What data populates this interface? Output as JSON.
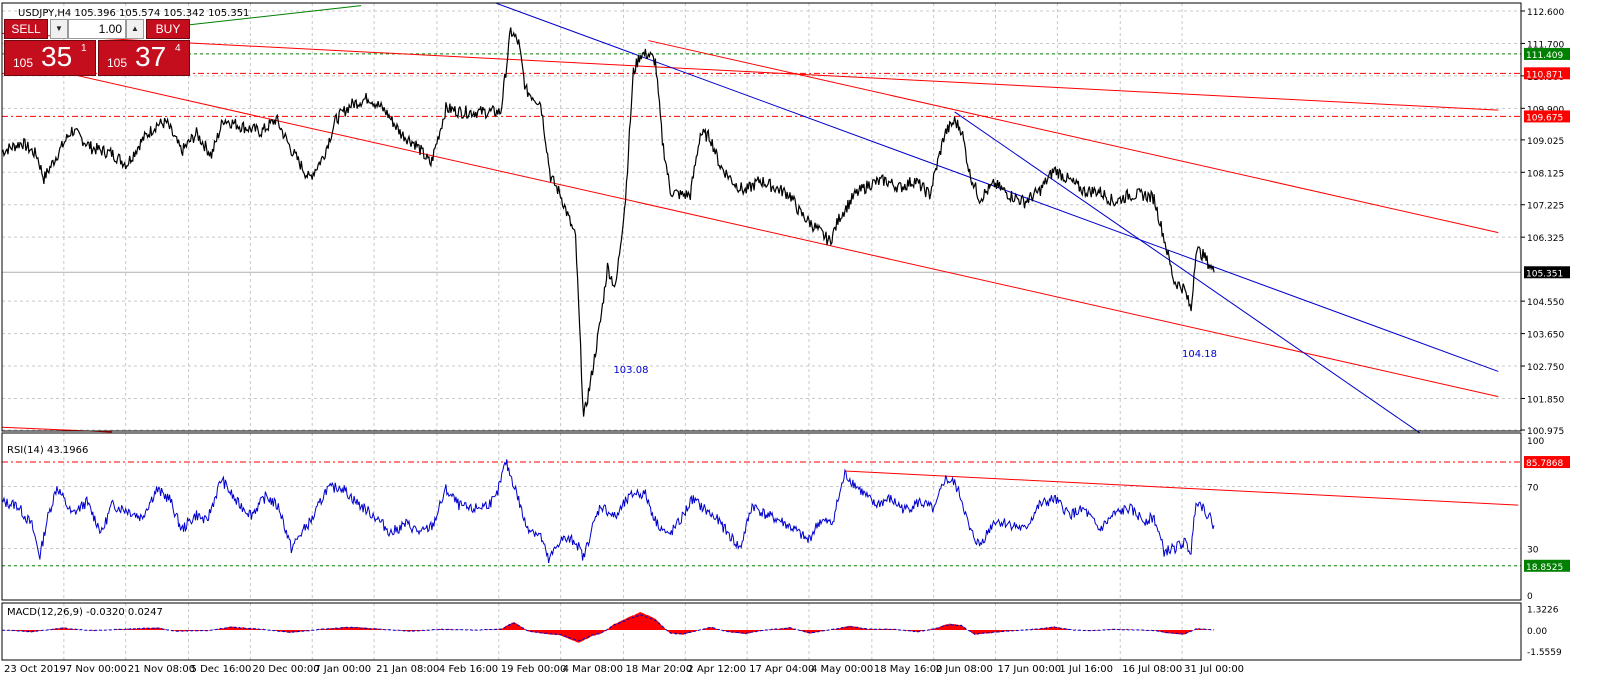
{
  "chart_title": "USDJPY,H4  105.396 105.574 105.342 105.351",
  "rsi_title": "RSI(14) 43.1966",
  "macd_title": "MACD(12,26,9) -0.0320 0.0247",
  "trade_panel": {
    "sell_label": "SELL",
    "buy_label": "BUY",
    "lot": "1.00",
    "sell_price": {
      "small": "105",
      "big": "35",
      "sup": "1"
    },
    "buy_price": {
      "small": "105",
      "big": "37",
      "sup": "4"
    }
  },
  "colors": {
    "bg": "#ffffff",
    "price": "#000000",
    "rsi": "#0000cd",
    "trend_red": "#ff0000",
    "channel_blue": "#0000cd",
    "green_level": "#008000",
    "red_level": "#ff0000",
    "macd_hist": "#ff0000",
    "grid": "#c8c8c8"
  },
  "chart_data": [
    {
      "type": "line",
      "name": "main",
      "symbol": "USDJPY",
      "timeframe": "H4",
      "ohlc_last": {
        "open": 105.396,
        "high": 105.574,
        "low": 105.342,
        "close": 105.351
      },
      "ylim": [
        100.9,
        112.65
      ],
      "y_ticks": [
        "112.600",
        "111.700",
        "110.800",
        "109.900",
        "109.025",
        "108.125",
        "107.225",
        "106.325",
        "104.550",
        "103.650",
        "102.750",
        "101.850",
        "100.975"
      ],
      "x_ticks": [
        "23 Oct 2019",
        "7 Nov 00:00",
        "21 Nov 08:00",
        "5 Dec 16:00",
        "20 Dec 00:00",
        "7 Jan 00:00",
        "21 Jan 08:00",
        "4 Feb 16:00",
        "19 Feb 00:00",
        "4 Mar 08:00",
        "18 Mar 20:00",
        "2 Apr 12:00",
        "17 Apr 04:00",
        "4 May 00:00",
        "18 May 16:00",
        "2 Jun 08:00",
        "17 Jun 00:00",
        "1 Jul 16:00",
        "16 Jul 08:00",
        "31 Jul 00:00"
      ],
      "x_tick_bars": [
        0,
        62,
        124,
        187,
        249,
        311,
        373,
        436,
        498,
        560,
        623,
        685,
        747,
        809,
        872,
        934,
        996,
        1058,
        1121,
        1183
      ],
      "levels": [
        {
          "value": 111.409,
          "label": "111.409",
          "style": "green"
        },
        {
          "value": 110.871,
          "label": "110.871",
          "style": "red"
        },
        {
          "value": 109.675,
          "label": "109.675",
          "style": "red"
        },
        {
          "value": 105.351,
          "label": "105.351",
          "style": "current"
        }
      ],
      "annotations": [
        {
          "text": "103.08",
          "bar": 628,
          "y": 102.55
        },
        {
          "text": "104.18",
          "bar": 1198,
          "y": 103.0
        }
      ],
      "trendlines": [
        {
          "color": "red",
          "x1": 0,
          "y1": 111.98,
          "x2": 1500,
          "y2": 109.85
        },
        {
          "color": "red",
          "x1": 45,
          "y1": 111.0,
          "x2": 1500,
          "y2": 101.9
        },
        {
          "color": "red",
          "x1": 648,
          "y1": 111.78,
          "x2": 1500,
          "y2": 106.45
        },
        {
          "color": "blue",
          "x1": 495,
          "y1": 112.82,
          "x2": 1500,
          "y2": 102.6
        },
        {
          "color": "blue",
          "x1": 955,
          "y1": 109.8,
          "x2": 1421,
          "y2": 100.9
        },
        {
          "color": "green",
          "x1": 150,
          "y1": 112.1,
          "x2": 360,
          "y2": 112.75
        },
        {
          "color": "red",
          "x1": 0,
          "y1": 101.05,
          "x2": 110,
          "y2": 100.92
        }
      ],
      "price_keypoints": [
        [
          0,
          108.7
        ],
        [
          20,
          108.95
        ],
        [
          35,
          108.6
        ],
        [
          42,
          107.95
        ],
        [
          55,
          108.6
        ],
        [
          70,
          109.3
        ],
        [
          90,
          108.8
        ],
        [
          110,
          108.65
        ],
        [
          125,
          108.35
        ],
        [
          140,
          109.0
        ],
        [
          155,
          109.45
        ],
        [
          165,
          109.5
        ],
        [
          180,
          108.7
        ],
        [
          195,
          109.2
        ],
        [
          210,
          108.6
        ],
        [
          222,
          109.6
        ],
        [
          240,
          109.4
        ],
        [
          260,
          109.25
        ],
        [
          275,
          109.6
        ],
        [
          290,
          108.75
        ],
        [
          308,
          107.95
        ],
        [
          322,
          108.55
        ],
        [
          335,
          109.6
        ],
        [
          350,
          110.0
        ],
        [
          368,
          110.2
        ],
        [
          385,
          109.8
        ],
        [
          400,
          109.2
        ],
        [
          415,
          108.9
        ],
        [
          430,
          108.35
        ],
        [
          445,
          109.9
        ],
        [
          460,
          109.8
        ],
        [
          478,
          109.8
        ],
        [
          500,
          109.8
        ],
        [
          510,
          112.05
        ],
        [
          518,
          111.7
        ],
        [
          525,
          110.4
        ],
        [
          540,
          110.05
        ],
        [
          550,
          108.0
        ],
        [
          560,
          107.5
        ],
        [
          575,
          106.3
        ],
        [
          583,
          101.3
        ],
        [
          590,
          102.3
        ],
        [
          600,
          104.0
        ],
        [
          607,
          105.5
        ],
        [
          615,
          104.9
        ],
        [
          625,
          107.4
        ],
        [
          633,
          110.9
        ],
        [
          640,
          111.4
        ],
        [
          648,
          111.4
        ],
        [
          655,
          111.2
        ],
        [
          662,
          109.0
        ],
        [
          670,
          107.6
        ],
        [
          680,
          107.5
        ],
        [
          690,
          107.5
        ],
        [
          700,
          109.2
        ],
        [
          710,
          109.1
        ],
        [
          720,
          108.3
        ],
        [
          735,
          107.8
        ],
        [
          745,
          107.6
        ],
        [
          760,
          107.9
        ],
        [
          775,
          107.7
        ],
        [
          790,
          107.5
        ],
        [
          800,
          107.0
        ],
        [
          815,
          106.6
        ],
        [
          830,
          106.2
        ],
        [
          840,
          106.9
        ],
        [
          855,
          107.5
        ],
        [
          870,
          107.8
        ],
        [
          885,
          107.9
        ],
        [
          900,
          107.7
        ],
        [
          915,
          107.9
        ],
        [
          930,
          107.5
        ],
        [
          945,
          109.2
        ],
        [
          955,
          109.55
        ],
        [
          962,
          109.3
        ],
        [
          970,
          108.1
        ],
        [
          980,
          107.4
        ],
        [
          995,
          107.8
        ],
        [
          1010,
          107.5
        ],
        [
          1025,
          107.3
        ],
        [
          1040,
          107.6
        ],
        [
          1055,
          108.2
        ],
        [
          1070,
          107.9
        ],
        [
          1085,
          107.6
        ],
        [
          1100,
          107.6
        ],
        [
          1115,
          107.3
        ],
        [
          1130,
          107.5
        ],
        [
          1145,
          107.5
        ],
        [
          1155,
          107.4
        ],
        [
          1165,
          106.3
        ],
        [
          1175,
          105.1
        ],
        [
          1185,
          104.9
        ],
        [
          1192,
          104.3
        ],
        [
          1197,
          106.0
        ],
        [
          1205,
          105.8
        ],
        [
          1215,
          105.351
        ]
      ],
      "bars_visible": 1215
    },
    {
      "type": "line",
      "name": "RSI(14)",
      "value": 43.1966,
      "ylim": [
        0,
        100
      ],
      "y_ticks": [
        "100",
        "70",
        "30",
        "0"
      ],
      "levels": [
        {
          "value": 85.7868,
          "label": "85.7868",
          "style": "red"
        },
        {
          "value": 18.8525,
          "label": "18.8525",
          "style": "green"
        }
      ],
      "trendline": {
        "x1": 845,
        "y1": 80.0,
        "x2": 1520,
        "y2": 58.0
      },
      "keypoints": [
        [
          0,
          60
        ],
        [
          15,
          58
        ],
        [
          30,
          45
        ],
        [
          38,
          25
        ],
        [
          45,
          48
        ],
        [
          55,
          70
        ],
        [
          70,
          52
        ],
        [
          85,
          60
        ],
        [
          100,
          40
        ],
        [
          110,
          58
        ],
        [
          125,
          55
        ],
        [
          140,
          50
        ],
        [
          155,
          68
        ],
        [
          168,
          62
        ],
        [
          180,
          42
        ],
        [
          195,
          52
        ],
        [
          205,
          47
        ],
        [
          220,
          75
        ],
        [
          235,
          60
        ],
        [
          250,
          52
        ],
        [
          265,
          64
        ],
        [
          278,
          56
        ],
        [
          290,
          30
        ],
        [
          300,
          40
        ],
        [
          312,
          50
        ],
        [
          325,
          68
        ],
        [
          340,
          70
        ],
        [
          355,
          60
        ],
        [
          375,
          50
        ],
        [
          390,
          40
        ],
        [
          405,
          46
        ],
        [
          420,
          40
        ],
        [
          432,
          45
        ],
        [
          445,
          68
        ],
        [
          458,
          58
        ],
        [
          470,
          55
        ],
        [
          485,
          58
        ],
        [
          495,
          62
        ],
        [
          505,
          86
        ],
        [
          515,
          68
        ],
        [
          525,
          45
        ],
        [
          540,
          38
        ],
        [
          548,
          22
        ],
        [
          560,
          36
        ],
        [
          575,
          35
        ],
        [
          583,
          24
        ],
        [
          590,
          40
        ],
        [
          600,
          58
        ],
        [
          615,
          50
        ],
        [
          625,
          60
        ],
        [
          634,
          66
        ],
        [
          645,
          65
        ],
        [
          655,
          48
        ],
        [
          668,
          38
        ],
        [
          680,
          48
        ],
        [
          692,
          62
        ],
        [
          705,
          55
        ],
        [
          718,
          48
        ],
        [
          730,
          38
        ],
        [
          740,
          30
        ],
        [
          752,
          58
        ],
        [
          765,
          52
        ],
        [
          780,
          48
        ],
        [
          795,
          42
        ],
        [
          808,
          35
        ],
        [
          820,
          48
        ],
        [
          832,
          46
        ],
        [
          845,
          78
        ],
        [
          860,
          68
        ],
        [
          875,
          58
        ],
        [
          890,
          62
        ],
        [
          905,
          55
        ],
        [
          920,
          60
        ],
        [
          935,
          55
        ],
        [
          945,
          75
        ],
        [
          955,
          72
        ],
        [
          962,
          62
        ],
        [
          970,
          42
        ],
        [
          980,
          32
        ],
        [
          995,
          48
        ],
        [
          1010,
          46
        ],
        [
          1025,
          42
        ],
        [
          1040,
          58
        ],
        [
          1055,
          62
        ],
        [
          1070,
          52
        ],
        [
          1085,
          55
        ],
        [
          1100,
          42
        ],
        [
          1115,
          52
        ],
        [
          1130,
          56
        ],
        [
          1145,
          48
        ],
        [
          1155,
          50
        ],
        [
          1165,
          28
        ],
        [
          1175,
          30
        ],
        [
          1185,
          34
        ],
        [
          1192,
          28
        ],
        [
          1197,
          62
        ],
        [
          1205,
          56
        ],
        [
          1215,
          45
        ]
      ]
    },
    {
      "type": "bar",
      "name": "MACD(12,26,9)",
      "main": -0.032,
      "signal": 0.0247,
      "ylim": [
        -1.5559,
        1.3226
      ],
      "y_ticks": [
        "1.3226",
        "0.00",
        "-1.5559"
      ],
      "hist_keypoints": [
        [
          0,
          0.0
        ],
        [
          30,
          -0.15
        ],
        [
          60,
          0.15
        ],
        [
          90,
          -0.05
        ],
        [
          120,
          0.05
        ],
        [
          155,
          0.15
        ],
        [
          175,
          -0.1
        ],
        [
          205,
          -0.05
        ],
        [
          230,
          0.2
        ],
        [
          260,
          0.05
        ],
        [
          290,
          -0.2
        ],
        [
          320,
          0.05
        ],
        [
          350,
          0.2
        ],
        [
          380,
          0.05
        ],
        [
          410,
          -0.1
        ],
        [
          440,
          0.05
        ],
        [
          470,
          0.0
        ],
        [
          500,
          0.05
        ],
        [
          513,
          0.5
        ],
        [
          528,
          -0.1
        ],
        [
          545,
          -0.3
        ],
        [
          560,
          -0.4
        ],
        [
          578,
          -0.95
        ],
        [
          592,
          -0.45
        ],
        [
          600,
          -0.3
        ],
        [
          612,
          0.3
        ],
        [
          625,
          0.7
        ],
        [
          640,
          1.1
        ],
        [
          655,
          0.7
        ],
        [
          670,
          -0.25
        ],
        [
          682,
          -0.35
        ],
        [
          695,
          -0.1
        ],
        [
          710,
          0.2
        ],
        [
          725,
          -0.1
        ],
        [
          745,
          -0.3
        ],
        [
          765,
          0.0
        ],
        [
          790,
          0.15
        ],
        [
          810,
          -0.25
        ],
        [
          825,
          -0.05
        ],
        [
          850,
          0.25
        ],
        [
          870,
          0.05
        ],
        [
          895,
          0.05
        ],
        [
          918,
          -0.15
        ],
        [
          935,
          0.1
        ],
        [
          950,
          0.4
        ],
        [
          962,
          0.3
        ],
        [
          975,
          -0.35
        ],
        [
          995,
          -0.2
        ],
        [
          1015,
          -0.05
        ],
        [
          1035,
          0.05
        ],
        [
          1055,
          0.2
        ],
        [
          1075,
          0.0
        ],
        [
          1095,
          -0.05
        ],
        [
          1115,
          0.05
        ],
        [
          1140,
          0.0
        ],
        [
          1155,
          -0.05
        ],
        [
          1170,
          -0.25
        ],
        [
          1185,
          -0.35
        ],
        [
          1198,
          0.1
        ],
        [
          1215,
          0.0
        ]
      ]
    }
  ]
}
